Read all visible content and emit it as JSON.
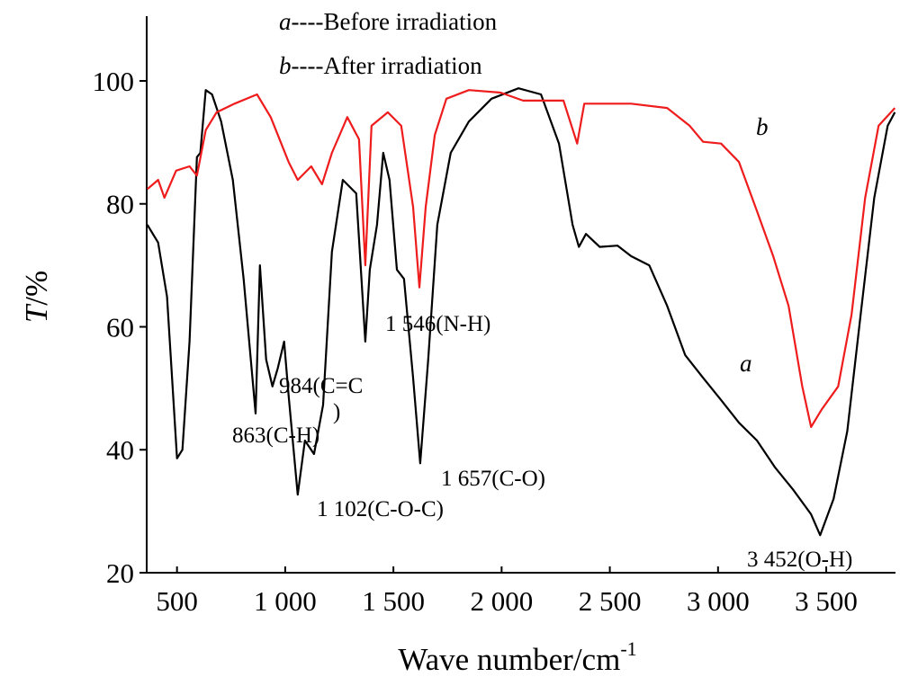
{
  "chart_data": {
    "type": "line",
    "legend_dash": "----",
    "xlabel": "Wave number/cm",
    "xlabel_exponent": "-1",
    "ylabel_symbol": "T",
    "ylabel": "/%",
    "xlim": [
      360,
      3820
    ],
    "ylim": [
      20,
      110
    ],
    "xticks": [
      500,
      {
        "value": 1000,
        "label": "1 000"
      },
      {
        "value": 1500,
        "label": "1 500"
      },
      {
        "value": 2000,
        "label": "2 000"
      },
      {
        "value": 2500,
        "label": "2 500"
      },
      {
        "value": 3000,
        "label": "3 000"
      },
      {
        "value": 3500,
        "label": "3 500"
      }
    ],
    "yticks": [
      20,
      40,
      60,
      80,
      100
    ],
    "series": [
      {
        "key": "a",
        "name": "Before irradiation",
        "color": "#000000",
        "x": [
          363,
          413,
          454,
          500,
          525,
          558,
          592,
          608,
          633,
          662,
          704,
          758,
          808,
          863,
          883,
          912,
          941,
          966,
          995,
          1016,
          1058,
          1091,
          1133,
          1175,
          1216,
          1266,
          1328,
          1370,
          1391,
          1424,
          1453,
          1482,
          1516,
          1549,
          1591,
          1624,
          1661,
          1703,
          1765,
          1849,
          1953,
          2078,
          2182,
          2265,
          2328,
          2357,
          2390,
          2453,
          2536,
          2598,
          2682,
          2765,
          2848,
          2931,
          3014,
          3097,
          3180,
          3264,
          3347,
          3430,
          3472,
          3534,
          3597,
          3659,
          3722,
          3784,
          3817
        ],
        "values": [
          76.6,
          73.7,
          64.9,
          38.6,
          40,
          57.6,
          87.6,
          88.3,
          98.5,
          97.8,
          93.4,
          83.9,
          67.8,
          45.9,
          70,
          54.7,
          50.3,
          53.3,
          57.6,
          48.8,
          32.7,
          41.5,
          39.3,
          47.3,
          72.2,
          83.9,
          81.7,
          57.6,
          69.3,
          76.6,
          88.3,
          83.9,
          69.3,
          67.8,
          51.7,
          37.8,
          54.7,
          76.6,
          88.3,
          93.4,
          97.1,
          98.8,
          97.8,
          89.8,
          76.6,
          73,
          75.1,
          73,
          73.2,
          71.5,
          70,
          63.4,
          55.4,
          51.7,
          48.1,
          44.4,
          41.5,
          37.1,
          33.5,
          29.5,
          26.1,
          32,
          43,
          62,
          81,
          92.7,
          94.9
        ]
      },
      {
        "key": "b",
        "name": "After irradiation",
        "color": "#ee1c1c",
        "x": [
          363,
          413,
          442,
          496,
          558,
          592,
          633,
          683,
          766,
          870,
          933,
          1016,
          1058,
          1120,
          1170,
          1216,
          1287,
          1341,
          1370,
          1399,
          1474,
          1536,
          1591,
          1620,
          1649,
          1691,
          1745,
          1849,
          1995,
          2099,
          2286,
          2349,
          2382,
          2598,
          2765,
          2869,
          2931,
          3014,
          3097,
          3180,
          3255,
          3326,
          3389,
          3430,
          3480,
          3555,
          3617,
          3680,
          3742,
          3817
        ],
        "values": [
          82.4,
          83.9,
          81,
          85.4,
          86.1,
          84.6,
          92,
          94.9,
          96.3,
          97.8,
          94.1,
          86.8,
          83.9,
          86.1,
          83.2,
          88.3,
          94.1,
          90.5,
          70,
          92.7,
          94.9,
          92.7,
          79.5,
          66.4,
          79.5,
          91.2,
          97.1,
          98.5,
          98.1,
          96.8,
          96.8,
          89.8,
          96.3,
          96.3,
          95.6,
          92.7,
          90.1,
          89.8,
          86.8,
          78.8,
          71.5,
          63.4,
          50.3,
          43.7,
          46.6,
          50.3,
          62,
          81,
          92.7,
          95.6
        ]
      }
    ],
    "annotations": [
      "863(C-H)",
      "984(C=C",
      ")",
      "1 102(C-O-C)",
      "1 546(N-H)",
      "1 657(C-O)",
      "3 452(O-H)"
    ]
  }
}
